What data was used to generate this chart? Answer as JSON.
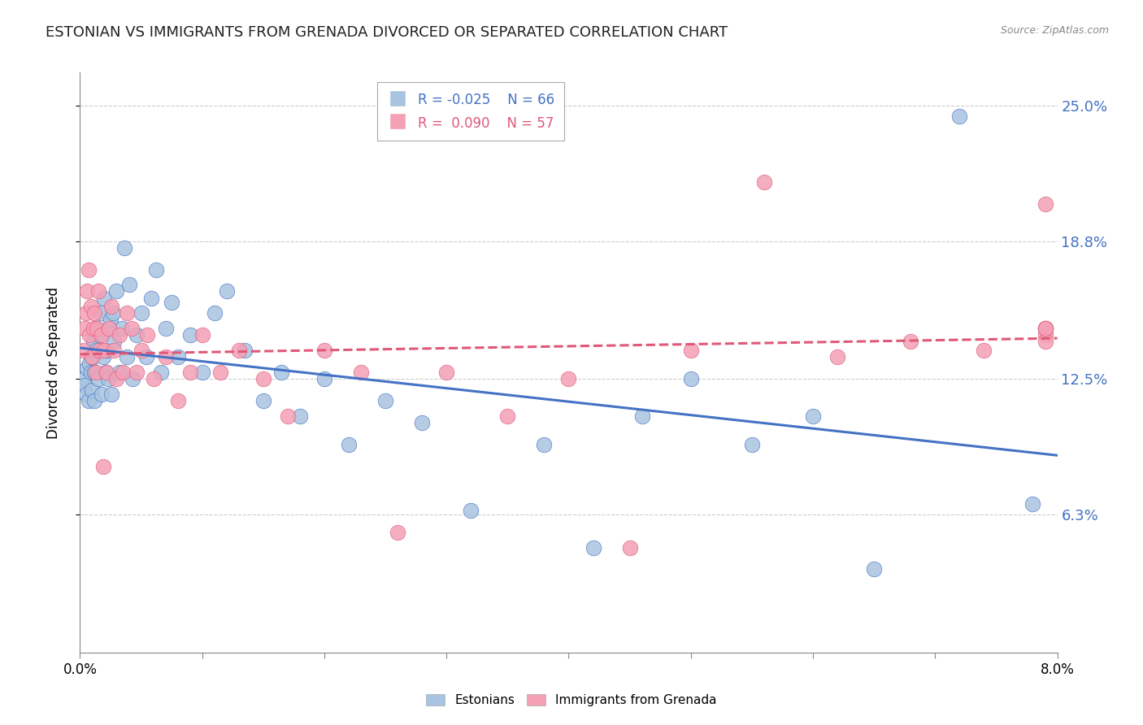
{
  "title": "ESTONIAN VS IMMIGRANTS FROM GRENADA DIVORCED OR SEPARATED CORRELATION CHART",
  "source": "Source: ZipAtlas.com",
  "ylabel": "Divorced or Separated",
  "ytick_labels": [
    "6.3%",
    "12.5%",
    "18.8%",
    "25.0%"
  ],
  "ytick_values": [
    0.063,
    0.125,
    0.188,
    0.25
  ],
  "xlim": [
    0.0,
    0.08
  ],
  "ylim": [
    0.0,
    0.265
  ],
  "legend_label1": "Estonians",
  "legend_label2": "Immigrants from Grenada",
  "R1": -0.025,
  "N1": 66,
  "R2": 0.09,
  "N2": 57,
  "color1": "#a8c4e0",
  "color2": "#f4a0b5",
  "line_color1": "#4472c4",
  "line_color2": "#e05878",
  "background_color": "#ffffff",
  "grid_color": "#cccccc",
  "title_color": "#222222",
  "right_axis_color": "#4472c4",
  "scatter1_x": [
    0.0003,
    0.0004,
    0.0005,
    0.0006,
    0.0007,
    0.0008,
    0.0009,
    0.001,
    0.001,
    0.0011,
    0.0012,
    0.0012,
    0.0013,
    0.0014,
    0.0015,
    0.0016,
    0.0017,
    0.0018,
    0.0019,
    0.002,
    0.0021,
    0.0022,
    0.0023,
    0.0024,
    0.0025,
    0.0026,
    0.0027,
    0.0028,
    0.003,
    0.0032,
    0.0034,
    0.0036,
    0.0038,
    0.004,
    0.0043,
    0.0046,
    0.005,
    0.0054,
    0.0058,
    0.0062,
    0.0066,
    0.007,
    0.0075,
    0.008,
    0.009,
    0.01,
    0.011,
    0.012,
    0.0135,
    0.015,
    0.0165,
    0.018,
    0.02,
    0.022,
    0.025,
    0.028,
    0.032,
    0.038,
    0.042,
    0.046,
    0.05,
    0.055,
    0.06,
    0.065,
    0.072,
    0.078
  ],
  "scatter1_y": [
    0.125,
    0.122,
    0.118,
    0.13,
    0.115,
    0.132,
    0.128,
    0.135,
    0.12,
    0.142,
    0.115,
    0.128,
    0.138,
    0.148,
    0.125,
    0.145,
    0.155,
    0.118,
    0.135,
    0.162,
    0.128,
    0.138,
    0.125,
    0.148,
    0.152,
    0.118,
    0.155,
    0.142,
    0.165,
    0.128,
    0.148,
    0.185,
    0.135,
    0.168,
    0.125,
    0.145,
    0.155,
    0.135,
    0.162,
    0.175,
    0.128,
    0.148,
    0.16,
    0.135,
    0.145,
    0.128,
    0.155,
    0.165,
    0.138,
    0.115,
    0.128,
    0.108,
    0.125,
    0.095,
    0.115,
    0.105,
    0.065,
    0.095,
    0.048,
    0.108,
    0.125,
    0.095,
    0.108,
    0.038,
    0.245,
    0.068
  ],
  "scatter2_x": [
    0.0003,
    0.0004,
    0.0005,
    0.0006,
    0.0007,
    0.0008,
    0.0009,
    0.001,
    0.0011,
    0.0012,
    0.0013,
    0.0014,
    0.0015,
    0.0016,
    0.0018,
    0.0019,
    0.002,
    0.0022,
    0.0024,
    0.0026,
    0.0028,
    0.003,
    0.0032,
    0.0035,
    0.0038,
    0.0042,
    0.0046,
    0.005,
    0.0055,
    0.006,
    0.007,
    0.008,
    0.009,
    0.01,
    0.0115,
    0.013,
    0.015,
    0.017,
    0.02,
    0.023,
    0.026,
    0.03,
    0.035,
    0.04,
    0.045,
    0.05,
    0.056,
    0.062,
    0.068,
    0.074,
    0.079,
    0.079,
    0.079,
    0.079,
    0.079,
    0.079,
    0.079
  ],
  "scatter2_y": [
    0.138,
    0.148,
    0.155,
    0.165,
    0.175,
    0.145,
    0.158,
    0.135,
    0.148,
    0.155,
    0.128,
    0.148,
    0.165,
    0.138,
    0.145,
    0.085,
    0.138,
    0.128,
    0.148,
    0.158,
    0.138,
    0.125,
    0.145,
    0.128,
    0.155,
    0.148,
    0.128,
    0.138,
    0.145,
    0.125,
    0.135,
    0.115,
    0.128,
    0.145,
    0.128,
    0.138,
    0.125,
    0.108,
    0.138,
    0.128,
    0.055,
    0.128,
    0.108,
    0.125,
    0.048,
    0.138,
    0.215,
    0.135,
    0.142,
    0.138,
    0.148,
    0.145,
    0.148,
    0.148,
    0.142,
    0.205,
    0.148
  ]
}
